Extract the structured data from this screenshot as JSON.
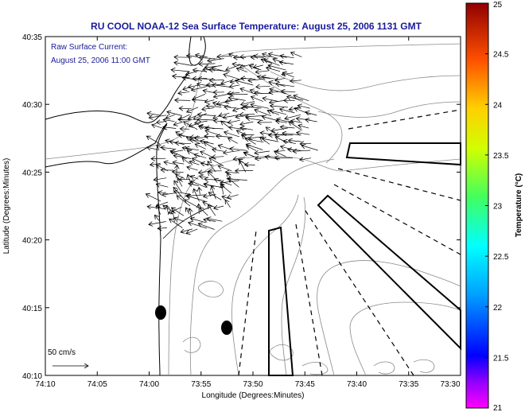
{
  "title": "RU COOL  NOAA-12  Sea Surface Temperature:  August 25, 2006 1131 GMT",
  "current_note": {
    "line1": "Raw Surface Current:",
    "line2": "August 25, 2006 11:00 GMT"
  },
  "axes": {
    "xlabel": "Longitude (Degrees:Minutes)",
    "ylabel": "Latitude (Degrees:Minutes)",
    "x_ticks": [
      "74:10",
      "74:05",
      "74:00",
      "73:55",
      "73:50",
      "73:45",
      "73:40",
      "73:35",
      "73:30"
    ],
    "y_ticks": [
      "40:35",
      "40:30",
      "40:25",
      "40:20",
      "40:15",
      "40:10"
    ]
  },
  "scale_label": "50 cm/s",
  "colorbar": {
    "label": "Temperature (°C)",
    "ticks": [
      "25",
      "24.5",
      "24",
      "23.5",
      "23",
      "22.5",
      "22",
      "21.5",
      "21"
    ]
  }
}
